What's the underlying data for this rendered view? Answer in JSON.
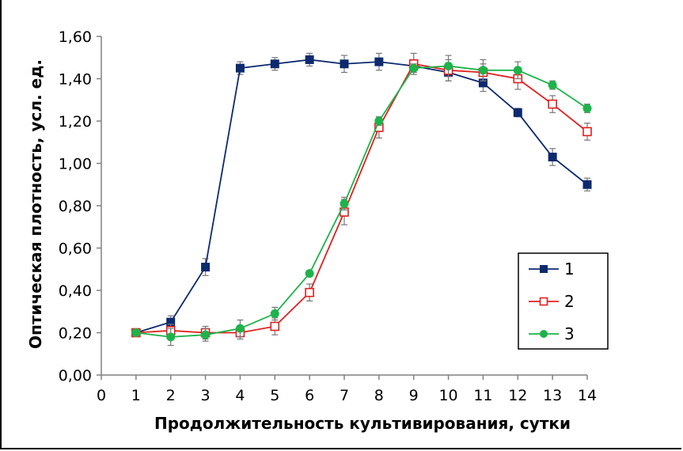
{
  "chart_data": {
    "type": "line",
    "xlabel": "Продолжительность культивирования, сутки",
    "ylabel": "Оптическая плотность, усл. ед.",
    "xlim": [
      0,
      14
    ],
    "ylim": [
      0,
      1.6
    ],
    "x_ticks": [
      "0",
      "1",
      "2",
      "3",
      "4",
      "5",
      "6",
      "7",
      "8",
      "9",
      "10",
      "11",
      "12",
      "13",
      "14"
    ],
    "y_ticks": [
      "0,00",
      "0,20",
      "0,40",
      "0,60",
      "0,80",
      "1,00",
      "1,20",
      "1,40",
      "1,60"
    ],
    "grid": false,
    "legend_position": "bottom-right",
    "x": [
      1,
      2,
      3,
      4,
      5,
      6,
      7,
      8,
      9,
      10,
      11,
      12,
      13,
      14
    ],
    "series": [
      {
        "name": "1",
        "color": "#0d2a6e",
        "marker": "filled-square",
        "values": [
          0.2,
          0.25,
          0.51,
          1.45,
          1.47,
          1.49,
          1.47,
          1.48,
          1.46,
          1.43,
          1.38,
          1.24,
          1.03,
          0.9
        ],
        "errors": [
          0.01,
          0.03,
          0.04,
          0.03,
          0.03,
          0.03,
          0.04,
          0.04,
          0.03,
          0.04,
          0.04,
          0.02,
          0.04,
          0.03
        ]
      },
      {
        "name": "2",
        "color": "#e02020",
        "marker": "open-square",
        "values": [
          0.2,
          0.21,
          0.2,
          0.2,
          0.23,
          0.39,
          0.77,
          1.17,
          1.47,
          1.44,
          1.43,
          1.4,
          1.28,
          1.15
        ],
        "errors": [
          0.01,
          0.03,
          0.03,
          0.03,
          0.04,
          0.04,
          0.06,
          0.05,
          0.05,
          0.05,
          0.04,
          0.05,
          0.04,
          0.04
        ]
      },
      {
        "name": "3",
        "color": "#1db34a",
        "marker": "filled-circle",
        "values": [
          0.2,
          0.18,
          0.19,
          0.22,
          0.29,
          0.48,
          0.81,
          1.2,
          1.45,
          1.46,
          1.44,
          1.44,
          1.37,
          1.26
        ],
        "errors": [
          0.01,
          0.04,
          0.03,
          0.04,
          0.03,
          0.01,
          0.03,
          0.02,
          0.02,
          0.05,
          0.05,
          0.04,
          0.02,
          0.02
        ]
      }
    ]
  }
}
